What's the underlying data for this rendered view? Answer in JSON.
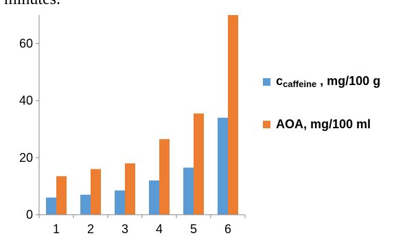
{
  "top_fragment": "minutes.",
  "colors": {
    "series1": "#5B9BD5",
    "series2": "#ED7D31",
    "axis": "#868686"
  },
  "chart_data": {
    "type": "bar",
    "categories": [
      "1",
      "2",
      "3",
      "4",
      "5",
      "6"
    ],
    "ylim": [
      0,
      70
    ],
    "yticks": [
      "0",
      "20",
      "40",
      "60"
    ],
    "grid": false,
    "legend_position": "right",
    "series": [
      {
        "name_main": "c",
        "name_sub": "caffeine",
        "name_unit": " , mg/100 g",
        "values": [
          6,
          7,
          8.5,
          12,
          16.5,
          34
        ]
      },
      {
        "name": "AOA, mg/100 ml",
        "values": [
          13.5,
          16,
          18,
          26.5,
          35.5,
          70
        ]
      }
    ]
  }
}
